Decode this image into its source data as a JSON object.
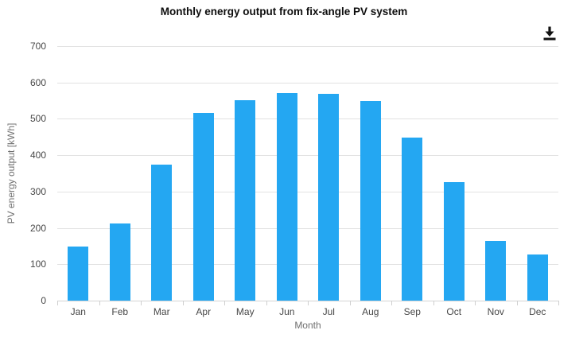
{
  "chart": {
    "title": "Monthly energy output from fix-angle PV system",
    "download_tooltip": "Download"
  },
  "chart_data": {
    "type": "bar",
    "title": "Monthly energy output from fix-angle PV system",
    "categories": [
      "Jan",
      "Feb",
      "Mar",
      "Apr",
      "May",
      "Jun",
      "Jul",
      "Aug",
      "Sep",
      "Oct",
      "Nov",
      "Dec"
    ],
    "values": [
      149,
      213,
      373,
      516,
      551,
      571,
      569,
      550,
      449,
      325,
      163,
      127
    ],
    "xlabel": "Month",
    "ylabel": "PV energy output [kWh]",
    "ylim": [
      0,
      700
    ],
    "ytick_step": 100,
    "yticks": [
      0,
      100,
      200,
      300,
      400,
      500,
      600,
      700
    ],
    "grid": true,
    "legend": "none",
    "bar_color": "#24a7f2",
    "grid_color": "#e2e2e2",
    "axis_color": "#d4d4d4",
    "tick_label_color": "#474747",
    "axis_title_color": "#707070",
    "title_color": "#0d0d0d",
    "icons": {
      "download": "download-icon"
    }
  }
}
